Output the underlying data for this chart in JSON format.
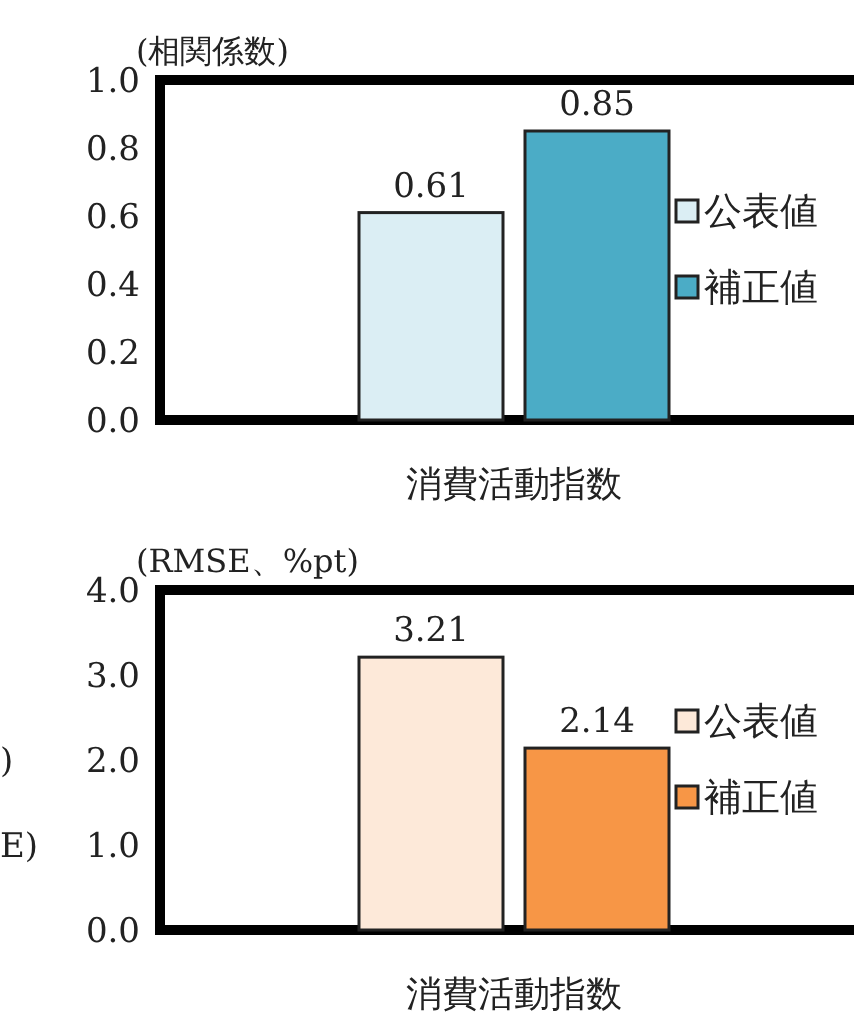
{
  "chart_data": [
    {
      "type": "bar",
      "ylabel": "(相関係数)",
      "categories": [
        "消費活動指数"
      ],
      "series": [
        {
          "name": "公表値",
          "color": "#dbeef4",
          "values": [
            0.61
          ]
        },
        {
          "name": "補正値",
          "color": "#4bacc6",
          "values": [
            0.85
          ]
        }
      ],
      "ylim": [
        0,
        1
      ],
      "yticks": [
        {
          "value": 0,
          "label": "0.0"
        },
        {
          "value": 0.2,
          "label": "0.2"
        },
        {
          "value": 0.4,
          "label": "0.4"
        },
        {
          "value": 0.6,
          "label": "0.6"
        },
        {
          "value": 0.8,
          "label": "0.8"
        },
        {
          "value": 1,
          "label": "1.0"
        }
      ],
      "data_labels": true,
      "legend": "right"
    },
    {
      "type": "bar",
      "ylabel": "(RMSE、%pt)",
      "categories": [
        "消費活動指数"
      ],
      "series": [
        {
          "name": "公表値",
          "color": "#fde9d9",
          "values": [
            3.21
          ]
        },
        {
          "name": "補正値",
          "color": "#f79646",
          "values": [
            2.14
          ]
        }
      ],
      "ylim": [
        0,
        4
      ],
      "yticks": [
        {
          "value": 0,
          "label": "0.0"
        },
        {
          "value": 1,
          "label": "1.0"
        },
        {
          "value": 2,
          "label": "2.0"
        },
        {
          "value": 3,
          "label": "3.0"
        },
        {
          "value": 4,
          "label": "4.0"
        }
      ],
      "data_labels": true,
      "legend": "right",
      "annotations": [
        ")",
        "E)"
      ]
    }
  ]
}
